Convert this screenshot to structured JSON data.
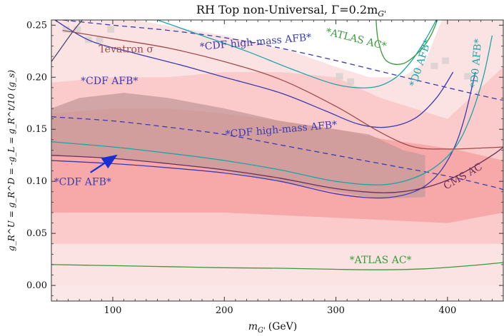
{
  "chart_data": {
    "type": "line",
    "title": "RH Top non-Universal, Γ=0.2m",
    "title_sub": "G'",
    "xlabel": "m",
    "xlabel_sub": "G'",
    "xlabel_units": "(GeV)",
    "ylabel": "g_R^U = g_R^D = -g_L = g_R^t/10 (g_s)",
    "xlim": [
      45,
      450
    ],
    "ylim": [
      -0.015,
      0.255
    ],
    "xticks": [
      100,
      200,
      300,
      400
    ],
    "xtick_labels": [
      "100",
      "200",
      "300",
      "400"
    ],
    "yticks": [
      0.0,
      0.05,
      0.1,
      0.15,
      0.2,
      0.25
    ],
    "ytick_labels": [
      "0.00",
      "0.05",
      "0.10",
      "0.15",
      "0.20",
      "0.25"
    ],
    "background": "pink/grey likelihood density map",
    "colors": {
      "cdf_afb": "#3b3bb0",
      "cdf_highmass": "#3b3bb0",
      "atlas": "#3a9a3a",
      "d0": "#1aa6a6",
      "tevatron": "#a04b4b",
      "cms": "#6a2f5a",
      "arrow": "#1a2fd0",
      "pink_light": "#fbd2d2",
      "pink_mid": "#f7aaaa",
      "grey": "#b58e8e"
    },
    "series": [
      {
        "name": "CDF AFB lower",
        "style": "solid",
        "color": "#3b3bb0",
        "x": [
          45,
          100,
          150,
          200,
          250,
          300,
          340,
          370,
          390,
          405,
          415,
          425
        ],
        "y": [
          0.12,
          0.117,
          0.113,
          0.108,
          0.1,
          0.088,
          0.084,
          0.09,
          0.105,
          0.13,
          0.16,
          0.205
        ]
      },
      {
        "name": "CDF AFB upper",
        "style": "solid",
        "color": "#3b3bb0",
        "x": [
          48,
          80,
          120,
          160,
          200,
          250,
          290,
          320,
          345,
          370,
          390,
          405
        ],
        "y": [
          0.255,
          0.235,
          0.223,
          0.212,
          0.2,
          0.185,
          0.168,
          0.155,
          0.152,
          0.16,
          0.18,
          0.205
        ]
      },
      {
        "name": "CDF high-mass AFB lower",
        "style": "dashed",
        "color": "#3b3bb0",
        "x": [
          45,
          100,
          150,
          200,
          250,
          300,
          350,
          400,
          440,
          450
        ],
        "y": [
          0.162,
          0.158,
          0.152,
          0.145,
          0.135,
          0.125,
          0.115,
          0.105,
          0.095,
          0.092
        ]
      },
      {
        "name": "CDF high-mass AFB upper",
        "style": "dashed",
        "color": "#3b3bb0",
        "x": [
          55,
          100,
          150,
          200,
          250,
          300,
          350,
          400,
          440,
          450
        ],
        "y": [
          0.255,
          0.25,
          0.245,
          0.238,
          0.228,
          0.216,
          0.203,
          0.19,
          0.18,
          0.178
        ]
      },
      {
        "name": "CMS AC",
        "style": "solid",
        "color": "#6a2f5a",
        "x": [
          45,
          100,
          150,
          200,
          250,
          300,
          345,
          380,
          410,
          440,
          450
        ],
        "y": [
          0.125,
          0.122,
          0.117,
          0.111,
          0.103,
          0.093,
          0.089,
          0.094,
          0.106,
          0.125,
          0.133
        ]
      },
      {
        "name": "D0 AFB lower",
        "style": "solid",
        "color": "#1aa6a6",
        "x": [
          45,
          100,
          150,
          200,
          250,
          300,
          345,
          380,
          405,
          420,
          432,
          440
        ],
        "y": [
          0.138,
          0.133,
          0.127,
          0.12,
          0.111,
          0.1,
          0.097,
          0.108,
          0.13,
          0.16,
          0.2,
          0.24
        ]
      },
      {
        "name": "D0 AFB upper",
        "style": "solid",
        "color": "#1aa6a6",
        "x": [
          140,
          180,
          220,
          260,
          300,
          330,
          350,
          365,
          378,
          390
        ],
        "y": [
          0.255,
          0.24,
          0.225,
          0.208,
          0.193,
          0.19,
          0.197,
          0.212,
          0.232,
          0.255
        ]
      },
      {
        "name": "Tevatron sigma",
        "style": "solid",
        "color": "#a04b4b",
        "x": [
          55,
          100,
          150,
          200,
          250,
          300,
          340,
          370,
          400,
          430,
          450
        ],
        "y": [
          0.245,
          0.237,
          0.228,
          0.215,
          0.198,
          0.172,
          0.147,
          0.133,
          0.131,
          0.132,
          0.133
        ]
      },
      {
        "name": "Tevatron edge",
        "style": "solid",
        "color": "#4a4a6a",
        "x": [
          45,
          55,
          65,
          75
        ],
        "y": [
          0.215,
          0.23,
          0.245,
          0.258
        ]
      },
      {
        "name": "ATLAS AC lower",
        "style": "solid",
        "color": "#3a9a3a",
        "x": [
          45,
          100,
          150,
          200,
          250,
          300,
          340,
          380,
          420,
          450
        ],
        "y": [
          0.02,
          0.019,
          0.018,
          0.017,
          0.0165,
          0.0155,
          0.015,
          0.016,
          0.019,
          0.022
        ]
      },
      {
        "name": "ATLAS AC upper",
        "style": "solid",
        "color": "#3a9a3a",
        "x": [
          336,
          338,
          345,
          360,
          375,
          385,
          392
        ],
        "y": [
          0.255,
          0.235,
          0.216,
          0.213,
          0.225,
          0.24,
          0.258
        ]
      }
    ],
    "annotations": [
      {
        "name": "label-cdf-afb-upper",
        "text": "*CDF AFB*",
        "x": 97,
        "y": 0.196,
        "color": "#3b3bb0",
        "rotate": 0
      },
      {
        "name": "label-cdf-afb-lower",
        "text": "*CDF AFB*",
        "x": 73,
        "y": 0.099,
        "color": "#3b3bb0",
        "rotate": 0
      },
      {
        "name": "label-cdf-highmass-upper",
        "text": "*CDF high-mass AFB*",
        "x": 228,
        "y": 0.2335,
        "color": "#3b3bb0",
        "rotate": -5
      },
      {
        "name": "label-cdf-highmass-lower",
        "text": "*CDF high-mass AFB*",
        "x": 251,
        "y": 0.1495,
        "color": "#3b3bb0",
        "rotate": -5
      },
      {
        "name": "label-tevatron",
        "text": "Tevatron σ",
        "x": 112,
        "y": 0.2265,
        "color": "#a04b4b",
        "rotate": 0
      },
      {
        "name": "label-atlas-upper",
        "text": "*ATLAS AC*",
        "x": 318,
        "y": 0.2365,
        "color": "#3a9a3a",
        "rotate": 14
      },
      {
        "name": "label-atlas-lower",
        "text": "*ATLAS AC*",
        "x": 340,
        "y": 0.024,
        "color": "#3a9a3a",
        "rotate": 0
      },
      {
        "name": "label-d0-upper",
        "text": "*D0 AFB*",
        "x": 376,
        "y": 0.2135,
        "color": "#1aa6a6",
        "rotate": -72
      },
      {
        "name": "label-d0-right",
        "text": "*D0 AFB*",
        "x": 426,
        "y": 0.2135,
        "color": "#1aa6a6",
        "rotate": -85
      },
      {
        "name": "label-cms",
        "text": "CMS AC",
        "x": 414,
        "y": 0.1045,
        "color": "#6a2f5a",
        "rotate": -30
      }
    ],
    "arrow": {
      "from_x": 80,
      "from_y": 0.1085,
      "to_x": 102,
      "to_y": 0.124,
      "color": "#1a2fd0"
    }
  }
}
